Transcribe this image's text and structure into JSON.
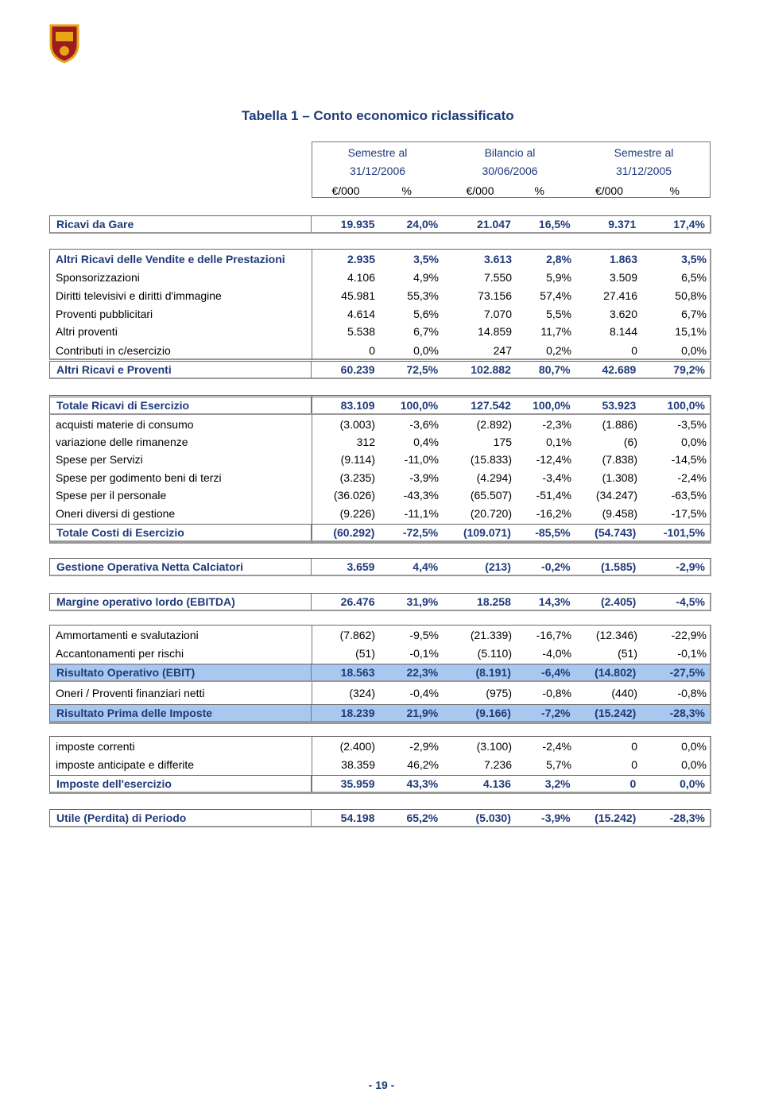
{
  "title": "Tabella 1 – Conto economico riclassificato",
  "header": {
    "columns": [
      {
        "line1": "Semestre al",
        "line2": "31/12/2006"
      },
      {
        "line1": "Bilancio al",
        "line2": "30/06/2006"
      },
      {
        "line1": "Semestre al",
        "line2": "31/12/2005"
      }
    ],
    "units": [
      "€/000",
      "%",
      "€/000",
      "%",
      "€/000",
      "%"
    ]
  },
  "table": {
    "rows": [
      {
        "label": "Ricavi da Gare",
        "values": [
          "19.935",
          "24,0%",
          "21.047",
          "16,5%",
          "9.371",
          "17,4%"
        ]
      },
      {
        "label": "Altri Ricavi delle Vendite e delle Prestazioni",
        "values": [
          "2.935",
          "3,5%",
          "3.613",
          "2,8%",
          "1.863",
          "3,5%"
        ]
      },
      {
        "label": "Sponsorizzazioni",
        "values": [
          "4.106",
          "4,9%",
          "7.550",
          "5,9%",
          "3.509",
          "6,5%"
        ]
      },
      {
        "label": "Diritti televisivi e diritti d'immagine",
        "values": [
          "45.981",
          "55,3%",
          "73.156",
          "57,4%",
          "27.416",
          "50,8%"
        ]
      },
      {
        "label": "Proventi pubblicitari",
        "values": [
          "4.614",
          "5,6%",
          "7.070",
          "5,5%",
          "3.620",
          "6,7%"
        ]
      },
      {
        "label": "Altri proventi",
        "values": [
          "5.538",
          "6,7%",
          "14.859",
          "11,7%",
          "8.144",
          "15,1%"
        ]
      },
      {
        "label": "Contributi in c/esercizio",
        "values": [
          "0",
          "0,0%",
          "247",
          "0,2%",
          "0",
          "0,0%"
        ]
      },
      {
        "label": "Altri Ricavi e Proventi",
        "values": [
          "60.239",
          "72,5%",
          "102.882",
          "80,7%",
          "42.689",
          "79,2%"
        ]
      },
      {
        "label": "Totale Ricavi di Esercizio",
        "values": [
          "83.109",
          "100,0%",
          "127.542",
          "100,0%",
          "53.923",
          "100,0%"
        ]
      },
      {
        "label": "acquisti materie di consumo",
        "values": [
          "(3.003)",
          "-3,6%",
          "(2.892)",
          "-2,3%",
          "(1.886)",
          "-3,5%"
        ]
      },
      {
        "label": "variazione delle rimanenze",
        "values": [
          "312",
          "0,4%",
          "175",
          "0,1%",
          "(6)",
          "0,0%"
        ]
      },
      {
        "label": "Spese per Servizi",
        "values": [
          "(9.114)",
          "-11,0%",
          "(15.833)",
          "-12,4%",
          "(7.838)",
          "-14,5%"
        ]
      },
      {
        "label": "Spese per godimento beni di terzi",
        "values": [
          "(3.235)",
          "-3,9%",
          "(4.294)",
          "-3,4%",
          "(1.308)",
          "-2,4%"
        ]
      },
      {
        "label": "Spese per il personale",
        "values": [
          "(36.026)",
          "-43,3%",
          "(65.507)",
          "-51,4%",
          "(34.247)",
          "-63,5%"
        ]
      },
      {
        "label": "Oneri diversi di gestione",
        "values": [
          "(9.226)",
          "-11,1%",
          "(20.720)",
          "-16,2%",
          "(9.458)",
          "-17,5%"
        ]
      },
      {
        "label": "Totale Costi di Esercizio",
        "values": [
          "(60.292)",
          "-72,5%",
          "(109.071)",
          "-85,5%",
          "(54.743)",
          "-101,5%"
        ]
      },
      {
        "label": "Gestione Operativa Netta Calciatori",
        "values": [
          "3.659",
          "4,4%",
          "(213)",
          "-0,2%",
          "(1.585)",
          "-2,9%"
        ]
      },
      {
        "label": "Margine operativo lordo (EBITDA)",
        "values": [
          "26.476",
          "31,9%",
          "18.258",
          "14,3%",
          "(2.405)",
          "-4,5%"
        ]
      },
      {
        "label": "Ammortamenti e svalutazioni",
        "values": [
          "(7.862)",
          "-9,5%",
          "(21.339)",
          "-16,7%",
          "(12.346)",
          "-22,9%"
        ]
      },
      {
        "label": "Accantonamenti per rischi",
        "values": [
          "(51)",
          "-0,1%",
          "(5.110)",
          "-4,0%",
          "(51)",
          "-0,1%"
        ]
      },
      {
        "label": "Risultato Operativo (EBIT)",
        "values": [
          "18.563",
          "22,3%",
          "(8.191)",
          "-6,4%",
          "(14.802)",
          "-27,5%"
        ]
      },
      {
        "label": "Oneri / Proventi finanziari netti",
        "values": [
          "(324)",
          "-0,4%",
          "(975)",
          "-0,8%",
          "(440)",
          "-0,8%"
        ]
      },
      {
        "label": "Risultato Prima delle Imposte",
        "values": [
          "18.239",
          "21,9%",
          "(9.166)",
          "-7,2%",
          "(15.242)",
          "-28,3%"
        ]
      },
      {
        "label": "imposte correnti",
        "values": [
          "(2.400)",
          "-2,9%",
          "(3.100)",
          "-2,4%",
          "0",
          "0,0%"
        ]
      },
      {
        "label": "imposte anticipate e differite",
        "values": [
          "38.359",
          "46,2%",
          "7.236",
          "5,7%",
          "0",
          "0,0%"
        ]
      },
      {
        "label": "Imposte dell'esercizio",
        "values": [
          "35.959",
          "43,3%",
          "4.136",
          "3,2%",
          "0",
          "0,0%"
        ]
      },
      {
        "label": "Utile (Perdita) di Periodo",
        "values": [
          "54.198",
          "65,2%",
          "(5.030)",
          "-3,9%",
          "(15.242)",
          "-28,3%"
        ]
      }
    ]
  },
  "footer": {
    "page": "- 19 -"
  }
}
